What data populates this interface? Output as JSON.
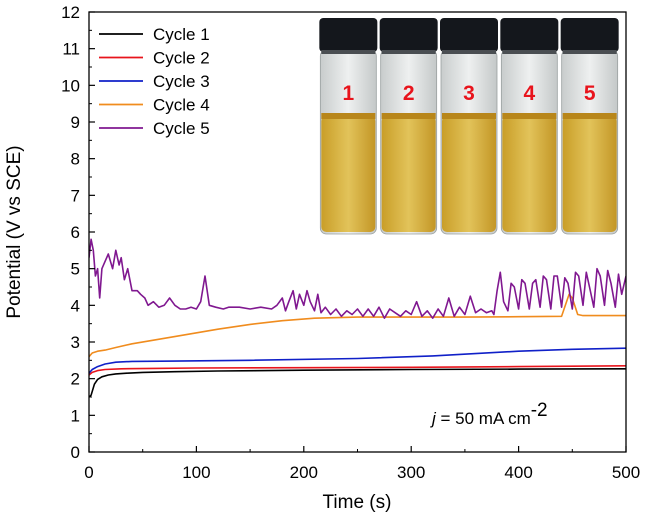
{
  "chart_data": {
    "type": "line",
    "title": "",
    "xlabel": "Time (s)",
    "ylabel": "Potential (V vs SCE)",
    "xlim": [
      0,
      500
    ],
    "ylim": [
      0,
      12
    ],
    "xticks": [
      0,
      100,
      200,
      300,
      400,
      500
    ],
    "xtick_labels": [
      "0",
      "100",
      "200",
      "300",
      "400",
      "500"
    ],
    "yticks": [
      0,
      1,
      2,
      3,
      4,
      5,
      6,
      7,
      8,
      9,
      10,
      11,
      12
    ],
    "ytick_labels": [
      "0",
      "1",
      "2",
      "3",
      "4",
      "5",
      "6",
      "7",
      "8",
      "9",
      "10",
      "11",
      "12"
    ],
    "grid": false,
    "legend_position": "top-left",
    "annotation": {
      "italic_part": "j",
      "text": " = 50 mA cm",
      "superscript": "-2"
    },
    "inset_photo": {
      "description_labels": [
        "1",
        "2",
        "3",
        "4",
        "5"
      ],
      "label_color": "#e8141c",
      "cap_color": "#14171c",
      "liquid_color": "#d9b33a",
      "glass_color": "#d8dcdc"
    },
    "series": [
      {
        "name": "Cycle 1",
        "color": "#000000",
        "x": [
          0,
          2,
          5,
          8,
          12,
          18,
          25,
          35,
          50,
          80,
          120,
          200,
          300,
          400,
          500
        ],
        "y": [
          1.5,
          1.55,
          1.85,
          1.98,
          2.05,
          2.1,
          2.13,
          2.15,
          2.17,
          2.19,
          2.21,
          2.23,
          2.25,
          2.26,
          2.27
        ]
      },
      {
        "name": "Cycle 2",
        "color": "#e8141c",
        "x": [
          0,
          3,
          8,
          15,
          30,
          60,
          100,
          200,
          300,
          400,
          500
        ],
        "y": [
          2.1,
          2.17,
          2.22,
          2.25,
          2.27,
          2.28,
          2.29,
          2.3,
          2.31,
          2.33,
          2.35
        ]
      },
      {
        "name": "Cycle 3",
        "color": "#1020c8",
        "x": [
          0,
          3,
          8,
          15,
          25,
          40,
          80,
          150,
          250,
          320,
          400,
          450,
          500
        ],
        "y": [
          2.15,
          2.25,
          2.33,
          2.4,
          2.45,
          2.47,
          2.48,
          2.5,
          2.55,
          2.62,
          2.75,
          2.8,
          2.83
        ]
      },
      {
        "name": "Cycle 4",
        "color": "#f08c1e",
        "x": [
          0,
          3,
          8,
          15,
          25,
          40,
          60,
          90,
          120,
          150,
          180,
          210,
          250,
          300,
          350,
          400,
          440,
          447,
          450,
          455,
          460,
          470,
          480,
          500
        ],
        "y": [
          2.6,
          2.7,
          2.75,
          2.78,
          2.85,
          2.95,
          3.05,
          3.2,
          3.35,
          3.48,
          3.58,
          3.65,
          3.68,
          3.68,
          3.68,
          3.69,
          3.7,
          4.3,
          4.2,
          3.75,
          3.72,
          3.72,
          3.72,
          3.72
        ]
      },
      {
        "name": "Cycle 5",
        "color": "#801890",
        "x": [
          0,
          2,
          4,
          6,
          8,
          10,
          12,
          15,
          18,
          22,
          25,
          28,
          30,
          33,
          36,
          40,
          45,
          48,
          52,
          55,
          60,
          65,
          70,
          75,
          80,
          85,
          90,
          95,
          100,
          104,
          108,
          112,
          118,
          125,
          130,
          140,
          150,
          160,
          170,
          175,
          180,
          183,
          186,
          190,
          193,
          196,
          200,
          203,
          206,
          210,
          213,
          216,
          220,
          225,
          230,
          235,
          240,
          245,
          250,
          255,
          260,
          265,
          270,
          275,
          280,
          285,
          290,
          295,
          300,
          305,
          310,
          315,
          320,
          325,
          330,
          335,
          340,
          345,
          350,
          355,
          360,
          365,
          370,
          375,
          377,
          380,
          383,
          386,
          390,
          393,
          396,
          400,
          403,
          406,
          410,
          413,
          416,
          420,
          423,
          426,
          430,
          433,
          436,
          440,
          443,
          446,
          450,
          453,
          456,
          460,
          463,
          466,
          470,
          473,
          476,
          480,
          483,
          486,
          490,
          493,
          496,
          500
        ],
        "y": [
          5.3,
          5.8,
          5.5,
          4.8,
          5.0,
          4.2,
          5.0,
          5.2,
          5.4,
          5.0,
          5.5,
          5.1,
          5.3,
          4.7,
          5.0,
          4.4,
          4.4,
          4.3,
          4.2,
          4.0,
          4.1,
          3.95,
          4.0,
          4.2,
          4.0,
          3.9,
          3.9,
          3.95,
          3.9,
          4.1,
          4.8,
          4.0,
          3.95,
          3.9,
          3.95,
          3.95,
          3.9,
          3.95,
          3.9,
          4.0,
          4.2,
          3.85,
          4.1,
          4.4,
          3.9,
          4.3,
          4.0,
          4.4,
          4.1,
          3.85,
          4.3,
          3.8,
          3.95,
          3.75,
          3.9,
          3.7,
          3.85,
          3.75,
          3.9,
          3.7,
          3.9,
          3.7,
          3.95,
          3.65,
          3.9,
          3.8,
          3.7,
          3.85,
          3.75,
          4.1,
          3.7,
          3.85,
          3.65,
          3.9,
          3.7,
          4.2,
          3.7,
          3.95,
          3.75,
          4.25,
          3.8,
          3.9,
          3.8,
          3.85,
          3.75,
          4.4,
          4.9,
          4.1,
          3.85,
          4.6,
          4.5,
          3.9,
          4.7,
          4.6,
          3.9,
          4.6,
          4.7,
          3.95,
          4.8,
          4.7,
          3.9,
          4.8,
          4.8,
          3.95,
          4.75,
          4.6,
          3.9,
          4.9,
          4.8,
          4.0,
          4.9,
          4.5,
          3.95,
          5.0,
          4.8,
          4.0,
          4.95,
          4.6,
          3.95,
          4.85,
          4.3,
          4.8
        ]
      }
    ]
  }
}
